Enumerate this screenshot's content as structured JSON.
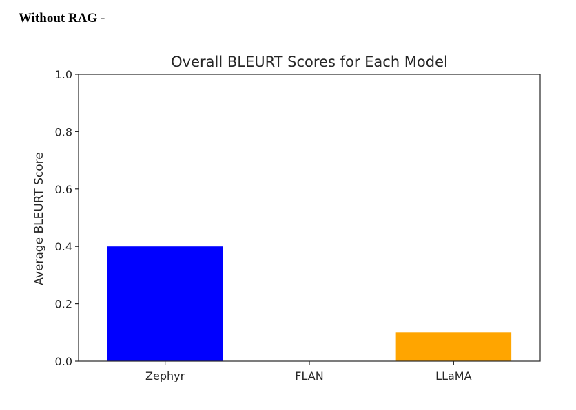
{
  "heading": {
    "label": "Without RAG",
    "separator": "-"
  },
  "chart_data": {
    "type": "bar",
    "title": "Overall BLEURT Scores for Each Model",
    "xlabel": "",
    "ylabel": "Average BLEURT Score",
    "categories": [
      "Zephyr",
      "FLAN",
      "LLaMA"
    ],
    "values": [
      0.4,
      0.0,
      0.1
    ],
    "colors": [
      "#0000ff",
      "#008000",
      "#ffa500"
    ],
    "ylim": [
      0.0,
      1.0
    ],
    "yticks": [
      0.0,
      0.2,
      0.4,
      0.6,
      0.8,
      1.0
    ],
    "ytick_labels": [
      "0.0",
      "0.2",
      "0.4",
      "0.6",
      "0.8",
      "1.0"
    ],
    "grid": false,
    "legend": "none"
  }
}
